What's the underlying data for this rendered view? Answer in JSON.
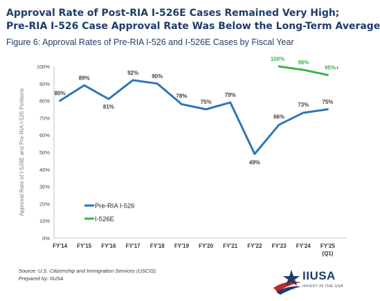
{
  "header": {
    "line1": "Approval Rate of Post-RIA I-526E Cases Remained Very High;",
    "line2": "Pre-RIA I-526 Case Approval Rate Was Below the Long-Term Average",
    "subtitle": "Figure 6: Approval Rates of Pre-RIA I-526 and I-526E Cases by Fiscal Year"
  },
  "chart_data": {
    "type": "line",
    "title": "Figure 6: Approval Rates of Pre-RIA I-526 and I-526E Cases by Fiscal Year",
    "xlabel": "",
    "ylabel": "Approval Rate of I-526E and Pre-RIA I-526 Petitions",
    "categories": [
      "FY'14",
      "FY'15",
      "FY'16",
      "FY'17",
      "FY'18",
      "FY'19",
      "FY'20",
      "FY'21",
      "FY'22",
      "FY'23",
      "FY'24",
      "FY'25"
    ],
    "category_sublabels": [
      "",
      "",
      "",
      "",
      "",
      "",
      "",
      "",
      "",
      "",
      "",
      "(Q1)"
    ],
    "ylim": [
      0,
      100
    ],
    "yticks": [
      0,
      10,
      20,
      30,
      40,
      50,
      60,
      70,
      80,
      90,
      100
    ],
    "ytick_labels": [
      "0%",
      "10%",
      "20%",
      "30%",
      "40%",
      "50%",
      "60%",
      "70%",
      "80%",
      "90%",
      "100%"
    ],
    "grid": false,
    "legend_position": "lower-left",
    "series": [
      {
        "name": "Pre-RIA I-526",
        "color": "#2e75b6",
        "values": [
          80,
          89,
          81,
          92,
          90,
          78,
          75,
          79,
          49,
          66,
          73,
          75
        ],
        "labels": [
          "80%",
          "89%",
          "81%",
          "92%",
          "90%",
          "78%",
          "75%",
          "79%",
          "49%",
          "66%",
          "73%",
          "75%"
        ]
      },
      {
        "name": "I-526E",
        "color": "#3cb44b",
        "values": [
          null,
          null,
          null,
          null,
          null,
          null,
          null,
          null,
          null,
          100,
          98,
          95
        ],
        "labels": [
          "",
          "",
          "",
          "",
          "",
          "",
          "",
          "",
          "",
          "100%",
          "98%",
          "95%+"
        ]
      }
    ]
  },
  "footer": {
    "source": "Source: U.S. Citizenship and Immigration Services (USCIS).",
    "prepared": "Prepared by: IIUSA"
  },
  "logo": {
    "name": "IIUSA",
    "tagline": "INVEST IN THE USA",
    "icon": "star-swoosh-icon"
  }
}
